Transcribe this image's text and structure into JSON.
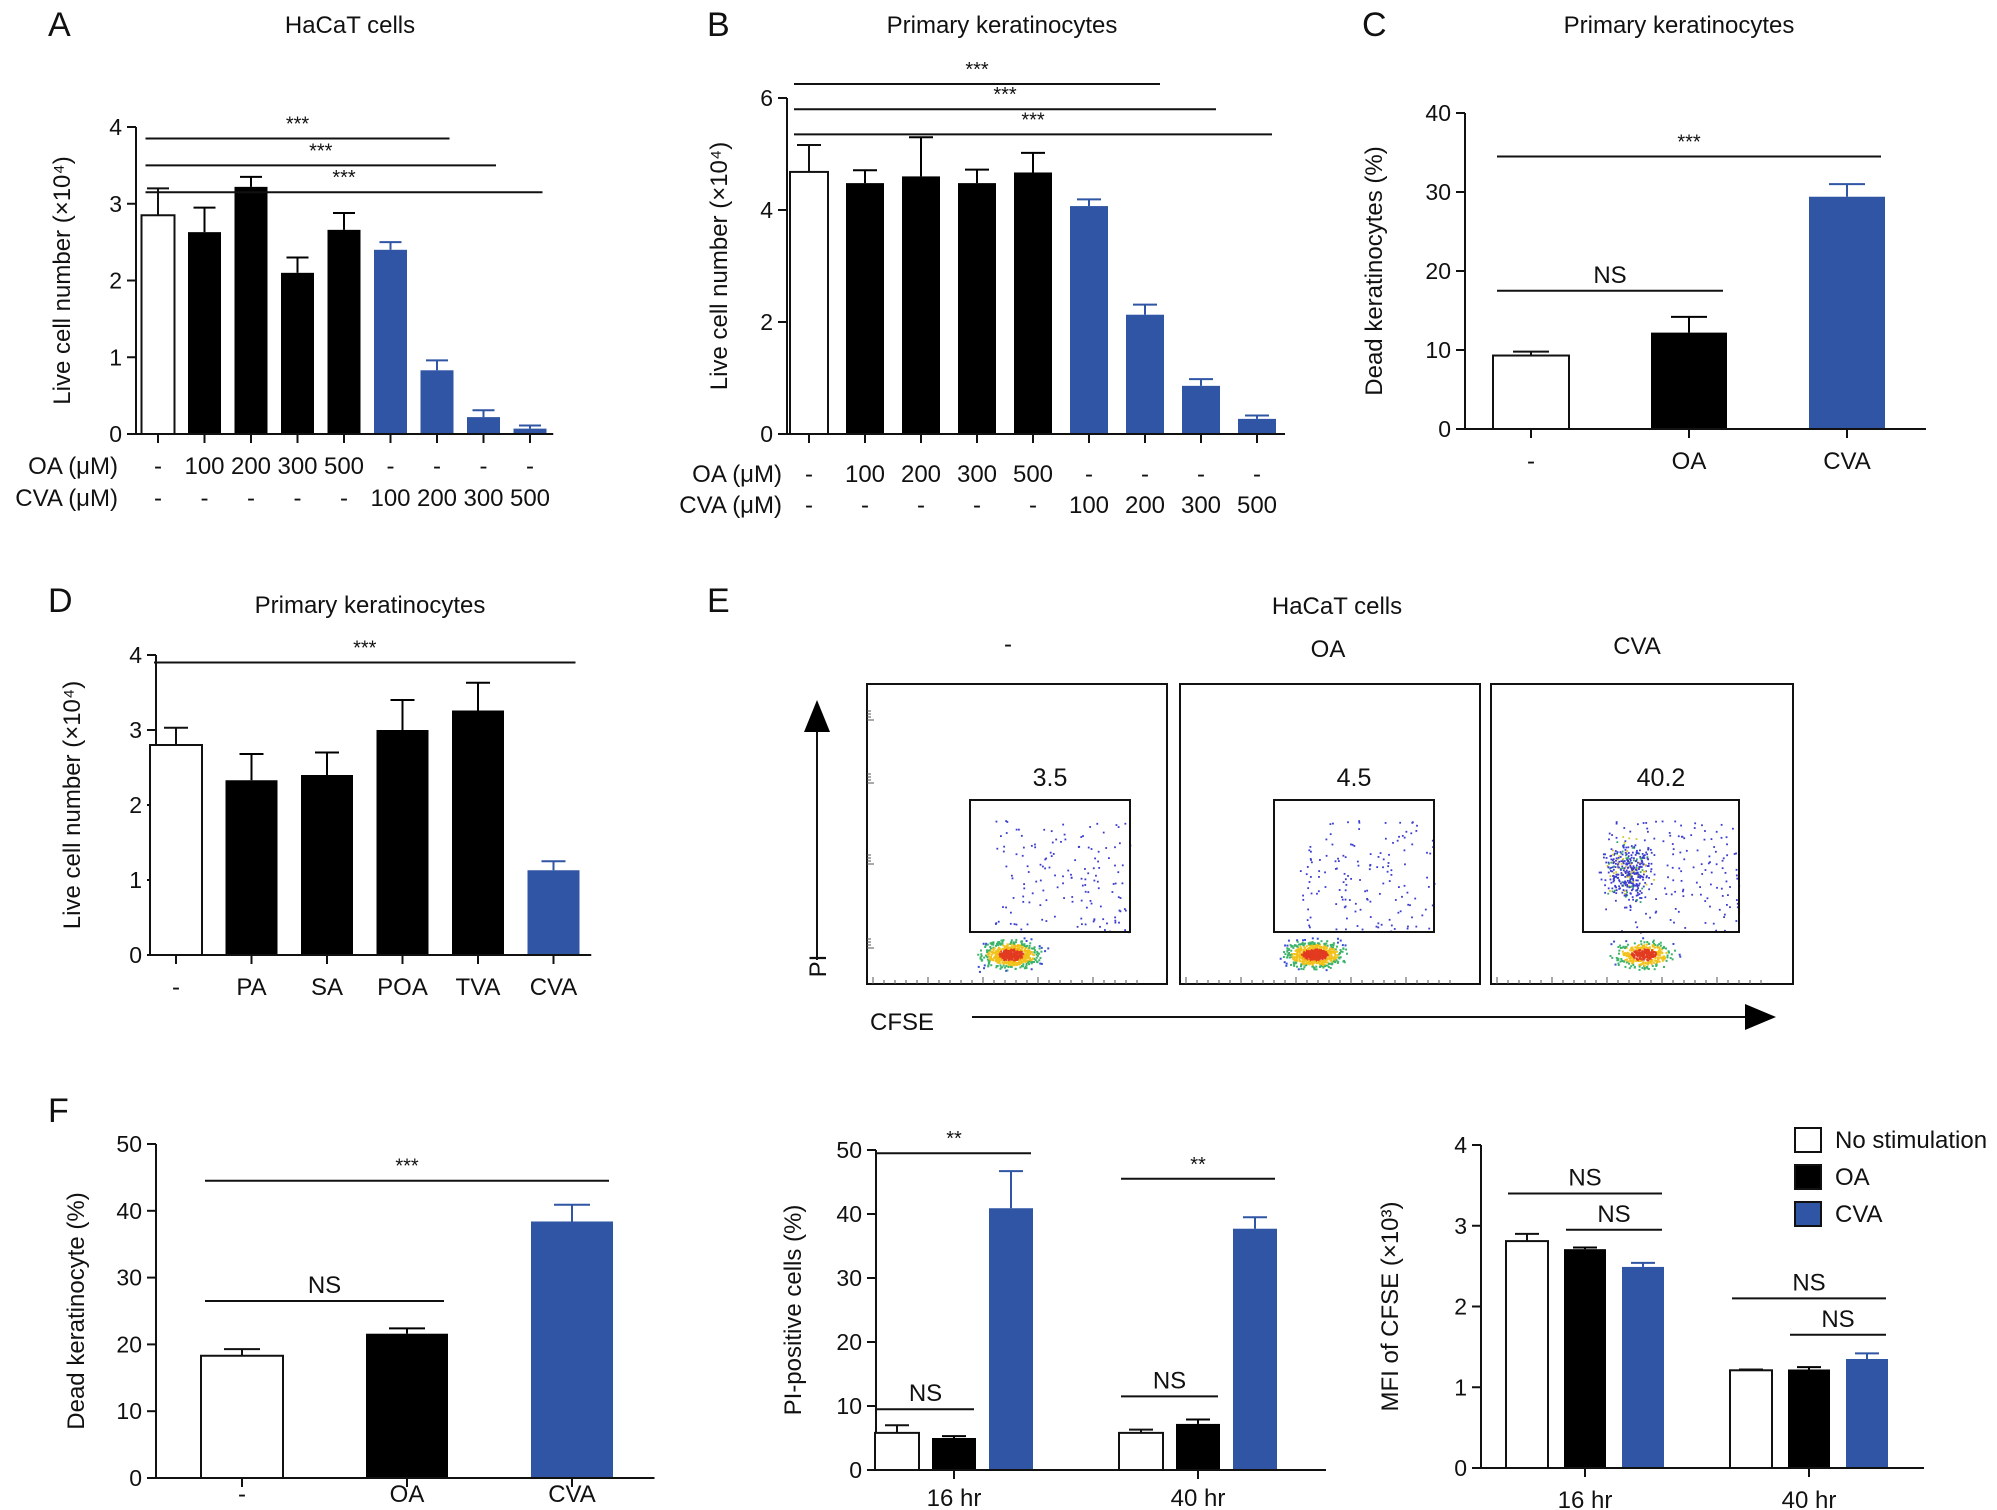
{
  "figure": {
    "colors": {
      "control": "#ffffff",
      "oa": "#000000",
      "cva": "#2f55a4",
      "axis": "#111111"
    }
  },
  "chart_data": [
    {
      "panel": "A",
      "type": "bar",
      "title": "HaCaT cells",
      "ylabel": "Live cell number (×10⁴)",
      "ylim": [
        0,
        4
      ],
      "yticks": [
        0,
        1,
        2,
        3,
        4
      ],
      "row_labels": [
        "OA (μM)",
        "CVA (μM)"
      ],
      "categories": [
        {
          "rows": [
            "-",
            "-"
          ],
          "value": 2.85,
          "error": 0.35,
          "group": "control"
        },
        {
          "rows": [
            "100",
            "-"
          ],
          "value": 2.63,
          "error": 0.32,
          "group": "oa"
        },
        {
          "rows": [
            "200",
            "-"
          ],
          "value": 3.22,
          "error": 0.13,
          "group": "oa"
        },
        {
          "rows": [
            "300",
            "-"
          ],
          "value": 2.1,
          "error": 0.2,
          "group": "oa"
        },
        {
          "rows": [
            "500",
            "-"
          ],
          "value": 2.66,
          "error": 0.22,
          "group": "oa"
        },
        {
          "rows": [
            "-",
            "100"
          ],
          "value": 2.4,
          "error": 0.1,
          "group": "cva"
        },
        {
          "rows": [
            "-",
            "200"
          ],
          "value": 0.83,
          "error": 0.13,
          "group": "cva"
        },
        {
          "rows": [
            "-",
            "300"
          ],
          "value": 0.22,
          "error": 0.09,
          "group": "cva"
        },
        {
          "rows": [
            "-",
            "500"
          ],
          "value": 0.07,
          "error": 0.04,
          "group": "cva"
        }
      ],
      "annotations": [
        {
          "label": "***",
          "from": 0,
          "to": 6,
          "level": 3.85
        },
        {
          "label": "***",
          "from": 0,
          "to": 7,
          "level": 3.5
        },
        {
          "label": "***",
          "from": 0,
          "to": 8,
          "level": 3.15
        }
      ]
    },
    {
      "panel": "B",
      "type": "bar",
      "title": "Primary keratinocytes",
      "ylabel": "Live cell number (×10⁴)",
      "ylim": [
        0,
        6
      ],
      "yticks": [
        0,
        2,
        4,
        6
      ],
      "row_labels": [
        "OA (μM)",
        "CVA (μM)"
      ],
      "categories": [
        {
          "rows": [
            "-",
            "-"
          ],
          "value": 4.68,
          "error": 0.48,
          "group": "control"
        },
        {
          "rows": [
            "100",
            "-"
          ],
          "value": 4.48,
          "error": 0.23,
          "group": "oa"
        },
        {
          "rows": [
            "200",
            "-"
          ],
          "value": 4.6,
          "error": 0.7,
          "group": "oa"
        },
        {
          "rows": [
            "300",
            "-"
          ],
          "value": 4.48,
          "error": 0.24,
          "group": "oa"
        },
        {
          "rows": [
            "500",
            "-"
          ],
          "value": 4.67,
          "error": 0.35,
          "group": "oa"
        },
        {
          "rows": [
            "-",
            "100"
          ],
          "value": 4.07,
          "error": 0.12,
          "group": "cva"
        },
        {
          "rows": [
            "-",
            "200"
          ],
          "value": 2.13,
          "error": 0.18,
          "group": "cva"
        },
        {
          "rows": [
            "-",
            "300"
          ],
          "value": 0.86,
          "error": 0.12,
          "group": "cva"
        },
        {
          "rows": [
            "-",
            "500"
          ],
          "value": 0.27,
          "error": 0.06,
          "group": "cva"
        }
      ],
      "annotations": [
        {
          "label": "***",
          "from": 0,
          "to": 6,
          "level": 6.25
        },
        {
          "label": "***",
          "from": 0,
          "to": 7,
          "level": 5.8
        },
        {
          "label": "***",
          "from": 0,
          "to": 8,
          "level": 5.35
        }
      ]
    },
    {
      "panel": "C",
      "type": "bar",
      "title": "Primary keratinocytes",
      "ylabel": "Dead keratinocytes (%)",
      "ylim": [
        0,
        40
      ],
      "yticks": [
        0,
        10,
        20,
        30,
        40
      ],
      "categories": [
        {
          "rows": [
            "-"
          ],
          "value": 9.3,
          "error": 0.5,
          "group": "control"
        },
        {
          "rows": [
            "OA"
          ],
          "value": 12.2,
          "error": 2.0,
          "group": "oa"
        },
        {
          "rows": [
            "CVA"
          ],
          "value": 29.4,
          "error": 1.6,
          "group": "cva"
        }
      ],
      "annotations": [
        {
          "label": "***",
          "from": 0,
          "to": 2,
          "level": 34.5
        },
        {
          "label": "NS",
          "from": 0,
          "to": 1,
          "level": 17.5
        }
      ]
    },
    {
      "panel": "D",
      "type": "bar",
      "title": "Primary keratinocytes",
      "ylabel": "Live cell number (×10⁴)",
      "ylim": [
        0,
        4
      ],
      "yticks": [
        0,
        1,
        2,
        3,
        4
      ],
      "categories": [
        {
          "rows": [
            "-"
          ],
          "value": 2.8,
          "error": 0.23,
          "group": "control"
        },
        {
          "rows": [
            "PA"
          ],
          "value": 2.33,
          "error": 0.35,
          "group": "oa"
        },
        {
          "rows": [
            "SA"
          ],
          "value": 2.4,
          "error": 0.3,
          "group": "oa"
        },
        {
          "rows": [
            "POA"
          ],
          "value": 3.0,
          "error": 0.4,
          "group": "oa"
        },
        {
          "rows": [
            "TVA"
          ],
          "value": 3.26,
          "error": 0.37,
          "group": "oa"
        },
        {
          "rows": [
            "CVA"
          ],
          "value": 1.13,
          "error": 0.12,
          "group": "cva"
        }
      ],
      "annotations": [
        {
          "label": "***",
          "from": 0,
          "to": 5,
          "level": 3.9
        }
      ]
    },
    {
      "panel": "E",
      "type": "scatter",
      "title": "HaCaT cells",
      "xlabel": "CFSE",
      "ylabel": "PI",
      "plots": [
        {
          "label": "-",
          "gate_percent": "3.5"
        },
        {
          "label": "OA",
          "gate_percent": "4.5"
        },
        {
          "label": "CVA",
          "gate_percent": "40.2"
        }
      ]
    },
    {
      "panel": "F",
      "type": "bar",
      "title": "",
      "ylabel": "Dead keratinocyte  (%)",
      "ylim": [
        0,
        50
      ],
      "yticks": [
        0,
        10,
        20,
        30,
        40,
        50
      ],
      "categories": [
        {
          "rows": [
            "-"
          ],
          "value": 18.3,
          "error": 1.0,
          "group": "control"
        },
        {
          "rows": [
            "OA"
          ],
          "value": 21.6,
          "error": 0.8,
          "group": "oa"
        },
        {
          "rows": [
            "CVA"
          ],
          "value": 38.4,
          "error": 2.5,
          "group": "cva"
        }
      ],
      "annotations": [
        {
          "label": "***",
          "from": 0,
          "to": 2,
          "level": 44.5
        },
        {
          "label": "NS",
          "from": 0,
          "to": 1,
          "level": 26.5
        }
      ]
    },
    {
      "panel": "F-middle",
      "type": "bar",
      "ylabel": "PI-positive cells (%)",
      "ylim": [
        0,
        50
      ],
      "yticks": [
        0,
        10,
        20,
        30,
        40,
        50
      ],
      "categories": [
        "16 hr",
        "40 hr"
      ],
      "series": [
        {
          "name": "No stimulation",
          "group": "control",
          "values": [
            5.8,
            5.8
          ],
          "errors": [
            1.2,
            0.5
          ]
        },
        {
          "name": "OA",
          "group": "oa",
          "values": [
            5.0,
            7.2
          ],
          "errors": [
            0.3,
            0.7
          ]
        },
        {
          "name": "CVA",
          "group": "cva",
          "values": [
            40.9,
            37.7
          ],
          "errors": [
            5.8,
            1.8
          ]
        }
      ],
      "annotations": [
        {
          "label": "**",
          "cat": 0,
          "from": 0,
          "to": 2,
          "level": 49.5
        },
        {
          "label": "NS",
          "cat": 0,
          "from": 0,
          "to": 1,
          "level": 9.5
        },
        {
          "label": "**",
          "cat": 1,
          "from": 0,
          "to": 2,
          "level": 45.5
        },
        {
          "label": "NS",
          "cat": 1,
          "from": 0,
          "to": 1,
          "level": 11.5
        }
      ]
    },
    {
      "panel": "F-right",
      "type": "bar",
      "ylabel": "MFI of CFSE (×10³)",
      "ylim": [
        0,
        4
      ],
      "yticks": [
        0,
        1,
        2,
        3,
        4
      ],
      "categories": [
        "16 hr",
        "40 hr"
      ],
      "legend": [
        "No stimulation",
        "OA",
        "CVA"
      ],
      "legend_position": "top-right",
      "series": [
        {
          "name": "No stimulation",
          "group": "control",
          "values": [
            2.81,
            1.21
          ],
          "errors": [
            0.09,
            0.01
          ]
        },
        {
          "name": "OA",
          "group": "oa",
          "values": [
            2.71,
            1.22
          ],
          "errors": [
            0.02,
            0.03
          ]
        },
        {
          "name": "CVA",
          "group": "cva",
          "values": [
            2.49,
            1.35
          ],
          "errors": [
            0.05,
            0.07
          ]
        }
      ],
      "annotations": [
        {
          "label": "NS",
          "cat": 0,
          "from": 0,
          "to": 2,
          "level": 3.4
        },
        {
          "label": "NS",
          "cat": 0,
          "from": 1,
          "to": 2,
          "level": 2.95
        },
        {
          "label": "NS",
          "cat": 1,
          "from": 0,
          "to": 2,
          "level": 2.1
        },
        {
          "label": "NS",
          "cat": 1,
          "from": 1,
          "to": 2,
          "level": 1.65
        }
      ]
    }
  ],
  "panel_labels": [
    "A",
    "B",
    "C",
    "D",
    "E",
    "F"
  ]
}
